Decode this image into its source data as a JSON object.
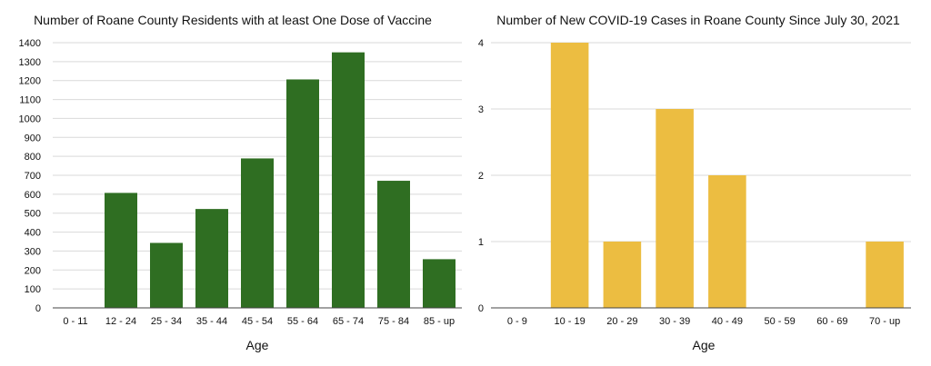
{
  "chart_data": [
    {
      "type": "bar",
      "title": "Number of Roane County Residents with at least One Dose of Vaccine",
      "xlabel": "Age",
      "ylabel": "",
      "categories": [
        "0 - 11",
        "12 - 24",
        "25 - 34",
        "35 - 44",
        "45 - 54",
        "55 - 64",
        "65 - 74",
        "75 - 84",
        "85 - up"
      ],
      "values": [
        0,
        607,
        343,
        522,
        789,
        1206,
        1349,
        671,
        257
      ],
      "ylim": [
        0,
        1400
      ],
      "yticks": [
        0,
        100,
        200,
        300,
        400,
        500,
        600,
        700,
        800,
        900,
        1000,
        1100,
        1200,
        1300,
        1400
      ],
      "grid": true,
      "legend": "none",
      "color": "#2f6e22"
    },
    {
      "type": "bar",
      "title": "Number of New COVID-19 Cases in Roane County Since July 30, 2021",
      "xlabel": "Age",
      "ylabel": "",
      "categories": [
        "0 - 9",
        "10 - 19",
        "20 - 29",
        "30 - 39",
        "40 - 49",
        "50 - 59",
        "60 - 69",
        "70 - up"
      ],
      "values": [
        0,
        4,
        1,
        3,
        2,
        0,
        0,
        1
      ],
      "ylim": [
        0,
        4
      ],
      "yticks": [
        0,
        1,
        2,
        3,
        4
      ],
      "grid": true,
      "legend": "none",
      "color": "#ecbd41"
    }
  ]
}
